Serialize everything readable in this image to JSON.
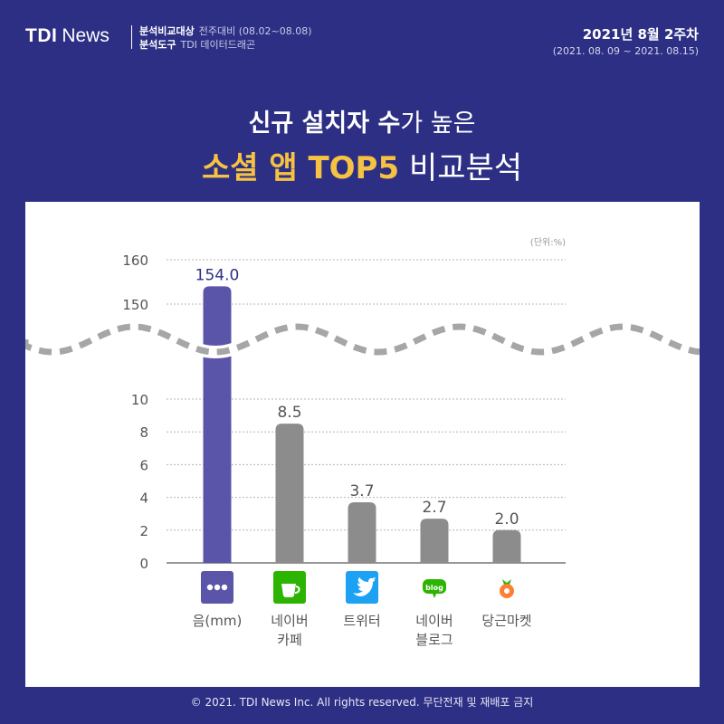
{
  "header": {
    "logo_mark": "TDI",
    "logo_news": "News",
    "meta1_label": "분석비교대상",
    "meta1_value": "전주대비 (08.02~08.08)",
    "meta2_label": "분석도구",
    "meta2_value": "TDI 데이터드래곤",
    "week": "2021년 8월 2주차",
    "period": "(2021. 08. 09 ~ 2021. 08.15)"
  },
  "title": {
    "line1_bold": "신규 설치자 수",
    "line1_light": "가 높은",
    "line2_bold": "소셜 앱 TOP5",
    "line2_light": "비교분석"
  },
  "footer": {
    "copyright": "© 2021. TDI News Inc. All rights reserved. 무단전재 및 재배포 금지"
  },
  "colors": {
    "background": "#2d2f84",
    "highlight": "#f5c242",
    "bar_primary": "#5a55a8",
    "bar_other": "#8c8c8c"
  },
  "chart_data": {
    "type": "bar",
    "unit": "(단위:%)",
    "categories": [
      "음(mm)",
      "네이버\n카페",
      "트위터",
      "네이버\n블로그",
      "당근마켓"
    ],
    "values": [
      154.0,
      8.5,
      3.7,
      2.7,
      2.0
    ],
    "value_labels": [
      "154.0",
      "8.5",
      "3.7",
      "2.7",
      "2.0"
    ],
    "icons": [
      "mm-app-icon",
      "naver-cafe-icon",
      "twitter-bird-icon",
      "naver-blog-icon",
      "carrot-icon"
    ],
    "y_axis_lower": {
      "range": [
        0,
        10
      ],
      "ticks": [
        0,
        2,
        4,
        6,
        8,
        10
      ]
    },
    "y_axis_upper": {
      "range": [
        150,
        160
      ],
      "ticks": [
        150,
        160
      ]
    },
    "axis_break": true,
    "grid": true,
    "legend": "none"
  }
}
